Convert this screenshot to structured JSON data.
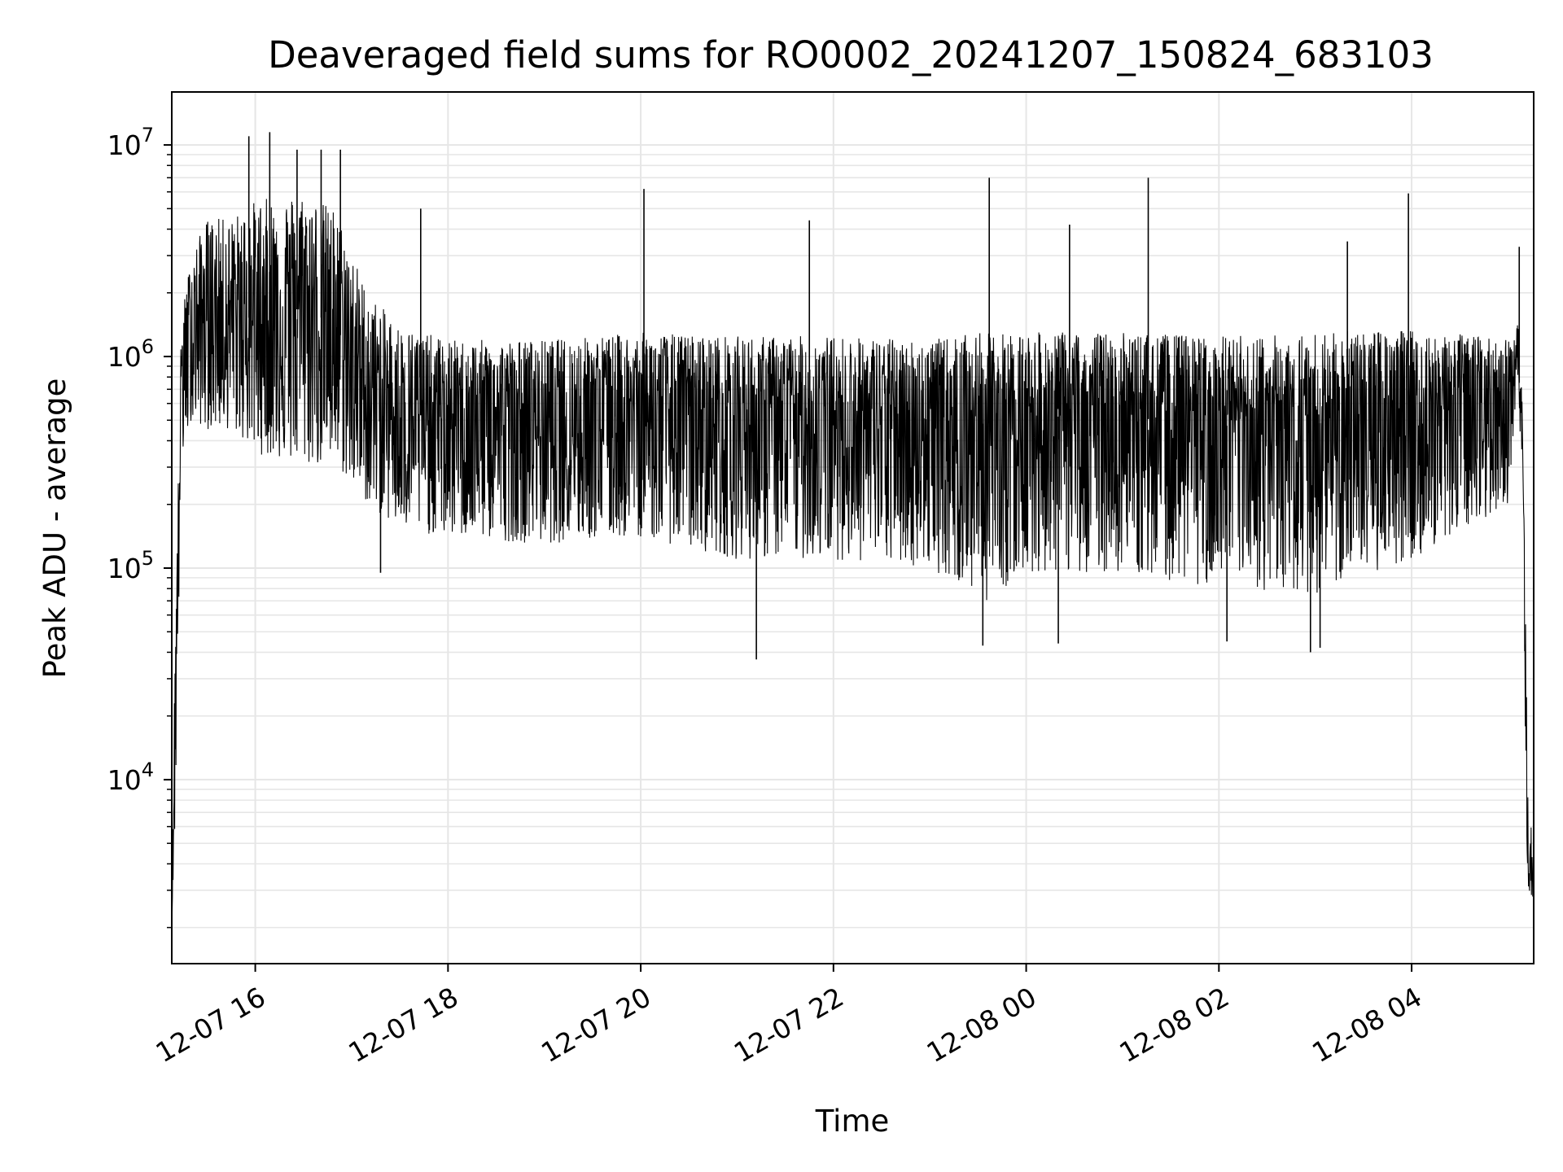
{
  "chart_data": {
    "type": "line",
    "title": "Deaveraged field sums for RO0002_20241207_150824_683103",
    "xlabel": "Time",
    "ylabel": "Peak ADU - average",
    "yscale": "log",
    "xlim": [
      "2024-12-07 15:08",
      "2024-12-08 05:16"
    ],
    "ylim": [
      1350,
      17800000
    ],
    "grid": "on (major and minor)",
    "line_color": "#000000",
    "grid_color": "#e6e6e6",
    "x_ticks": [
      {
        "t": "2024-12-07 16:00",
        "label": "12-07 16"
      },
      {
        "t": "2024-12-07 18:00",
        "label": "12-07 18"
      },
      {
        "t": "2024-12-07 20:00",
        "label": "12-07 20"
      },
      {
        "t": "2024-12-07 22:00",
        "label": "12-07 22"
      },
      {
        "t": "2024-12-08 00:00",
        "label": "12-08 00"
      },
      {
        "t": "2024-12-08 02:00",
        "label": "12-08 02"
      },
      {
        "t": "2024-12-08 04:00",
        "label": "12-08 04"
      }
    ],
    "y_ticks": [
      {
        "value": 10000,
        "base": "10",
        "exp": "4"
      },
      {
        "value": 100000,
        "base": "10",
        "exp": "5"
      },
      {
        "value": 1000000,
        "base": "10",
        "exp": "6"
      },
      {
        "value": 10000000,
        "base": "10",
        "exp": "7"
      }
    ],
    "series": [
      {
        "envelope": [
          {
            "t": "2024-12-07 15:08",
            "low": 2100,
            "high": 2500,
            "mid": 2300
          },
          {
            "t": "2024-12-07 15:10",
            "low": 5500,
            "high": 45000,
            "mid": 20000
          },
          {
            "t": "2024-12-07 15:14",
            "low": 300000,
            "high": 1500000,
            "mid": 900000
          },
          {
            "t": "2024-12-07 15:20",
            "low": 500000,
            "high": 3000000,
            "mid": 1400000
          },
          {
            "t": "2024-12-07 15:30",
            "low": 450000,
            "high": 4500000,
            "mid": 1600000
          },
          {
            "t": "2024-12-07 15:45",
            "low": 450000,
            "high": 4500000,
            "mid": 1600000
          },
          {
            "t": "2024-12-07 16:00",
            "low": 350000,
            "high": 5500000,
            "mid": 1500000
          },
          {
            "t": "2024-12-07 16:30",
            "low": 300000,
            "high": 6000000,
            "mid": 1700000
          },
          {
            "t": "2024-12-07 16:50",
            "low": 300000,
            "high": 5000000,
            "mid": 1400000
          },
          {
            "t": "2024-12-07 17:10",
            "low": 200000,
            "high": 2000000,
            "mid": 700000
          },
          {
            "t": "2024-12-07 17:30",
            "low": 150000,
            "high": 1400000,
            "mid": 550000
          },
          {
            "t": "2024-12-07 18:00",
            "low": 140000,
            "high": 1200000,
            "mid": 500000
          },
          {
            "t": "2024-12-07 19:00",
            "low": 130000,
            "high": 1200000,
            "mid": 520000
          },
          {
            "t": "2024-12-07 20:00",
            "low": 140000,
            "high": 1300000,
            "mid": 560000
          },
          {
            "t": "2024-12-07 21:00",
            "low": 110000,
            "high": 1250000,
            "mid": 520000
          },
          {
            "t": "2024-12-07 22:00",
            "low": 110000,
            "high": 1250000,
            "mid": 520000
          },
          {
            "t": "2024-12-07 23:00",
            "low": 100000,
            "high": 1200000,
            "mid": 500000
          },
          {
            "t": "2024-12-07 23:35",
            "low": 70000,
            "high": 1300000,
            "mid": 480000
          },
          {
            "t": "2024-12-08 00:00",
            "low": 95000,
            "high": 1300000,
            "mid": 520000
          },
          {
            "t": "2024-12-08 01:00",
            "low": 95000,
            "high": 1300000,
            "mid": 520000
          },
          {
            "t": "2024-12-08 02:00",
            "low": 80000,
            "high": 1250000,
            "mid": 470000
          },
          {
            "t": "2024-12-08 03:00",
            "low": 75000,
            "high": 1300000,
            "mid": 480000
          },
          {
            "t": "2024-12-08 04:00",
            "low": 110000,
            "high": 1350000,
            "mid": 560000
          },
          {
            "t": "2024-12-08 05:00",
            "low": 200000,
            "high": 1200000,
            "mid": 600000
          },
          {
            "t": "2024-12-08 05:06",
            "low": 800000,
            "high": 1500000,
            "mid": 1100000
          },
          {
            "t": "2024-12-08 05:09",
            "low": 200000,
            "high": 600000,
            "mid": 350000
          },
          {
            "t": "2024-12-08 05:12",
            "low": 3000,
            "high": 15000,
            "mid": 6000
          },
          {
            "t": "2024-12-08 05:16",
            "low": 2400,
            "high": 3500,
            "mid": 2800
          }
        ],
        "spikes": [
          {
            "t": "2024-12-07 15:56",
            "value": 11000000
          },
          {
            "t": "2024-12-07 16:09",
            "value": 11500000
          },
          {
            "t": "2024-12-07 16:26",
            "value": 9500000
          },
          {
            "t": "2024-12-07 16:41",
            "value": 9500000
          },
          {
            "t": "2024-12-07 16:53",
            "value": 9500000
          },
          {
            "t": "2024-12-07 17:43",
            "value": 5000000
          },
          {
            "t": "2024-12-07 20:02",
            "value": 6200000
          },
          {
            "t": "2024-12-07 21:45",
            "value": 4400000
          },
          {
            "t": "2024-12-07 23:37",
            "value": 7000000
          },
          {
            "t": "2024-12-08 00:27",
            "value": 4200000
          },
          {
            "t": "2024-12-08 01:16",
            "value": 7000000
          },
          {
            "t": "2024-12-08 03:20",
            "value": 3500000
          },
          {
            "t": "2024-12-08 03:58",
            "value": 5900000
          },
          {
            "t": "2024-12-08 05:07",
            "value": 3300000
          },
          {
            "t": "2024-12-07 21:12",
            "value": 37000
          },
          {
            "t": "2024-12-07 17:18",
            "value": 95000
          },
          {
            "t": "2024-12-07 23:33",
            "value": 43000
          },
          {
            "t": "2024-12-08 00:20",
            "value": 44000
          },
          {
            "t": "2024-12-08 02:05",
            "value": 45000
          },
          {
            "t": "2024-12-08 02:57",
            "value": 40000
          },
          {
            "t": "2024-12-08 03:03",
            "value": 42000
          }
        ]
      }
    ]
  }
}
